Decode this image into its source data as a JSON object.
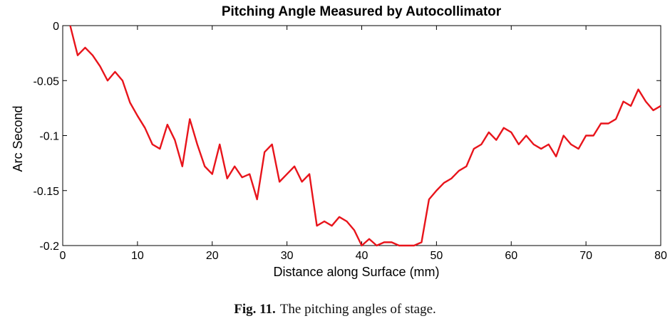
{
  "chart_data": {
    "type": "line",
    "title": "Pitching Angle Measured by Autocollimator",
    "xlabel": "Distance along Surface (mm)",
    "ylabel": "Arc Second",
    "xlim": [
      0,
      80
    ],
    "ylim": [
      -0.2,
      0
    ],
    "xticks": [
      "0",
      "10",
      "20",
      "30",
      "40",
      "50",
      "60",
      "70",
      "80"
    ],
    "yticks": [
      "0",
      "-0.05",
      "-0.1",
      "-0.15",
      "-0.2"
    ],
    "grid": false,
    "line_color": "#e8141b",
    "series": [
      {
        "x": [
          1,
          2,
          3,
          4,
          5,
          6,
          7,
          8,
          9,
          10,
          11,
          12,
          13,
          14,
          15,
          16,
          17,
          18,
          19,
          20,
          21,
          22,
          23,
          24,
          25,
          26,
          27,
          28,
          29,
          30,
          31,
          32,
          33,
          34,
          35,
          36,
          37,
          38,
          39,
          40,
          41,
          42,
          43,
          44,
          45,
          46,
          47,
          48,
          49,
          50,
          51,
          52,
          53,
          54,
          55,
          56,
          57,
          58,
          59,
          60,
          61,
          62,
          63,
          64,
          65,
          66,
          67,
          68,
          69,
          70,
          71,
          72,
          73,
          74,
          75,
          76,
          77,
          78,
          79,
          80
        ],
        "values": [
          0,
          -0.027,
          -0.02,
          -0.027,
          -0.037,
          -0.05,
          -0.042,
          -0.05,
          -0.07,
          -0.082,
          -0.093,
          -0.108,
          -0.112,
          -0.09,
          -0.104,
          -0.128,
          -0.085,
          -0.108,
          -0.128,
          -0.135,
          -0.108,
          -0.139,
          -0.128,
          -0.138,
          -0.135,
          -0.158,
          -0.115,
          -0.108,
          -0.142,
          -0.135,
          -0.128,
          -0.142,
          -0.135,
          -0.182,
          -0.178,
          -0.182,
          -0.174,
          -0.178,
          -0.186,
          -0.2,
          -0.194,
          -0.2,
          -0.197,
          -0.197,
          -0.2,
          -0.2,
          -0.2,
          -0.197,
          -0.158,
          -0.15,
          -0.143,
          -0.139,
          -0.132,
          -0.128,
          -0.112,
          -0.108,
          -0.097,
          -0.104,
          -0.093,
          -0.097,
          -0.108,
          -0.1,
          -0.108,
          -0.112,
          -0.108,
          -0.119,
          -0.1,
          -0.108,
          -0.112,
          -0.1,
          -0.1,
          -0.089,
          -0.089,
          -0.085,
          -0.069,
          -0.073,
          -0.058,
          -0.069,
          -0.077,
          -0.073
        ]
      }
    ]
  },
  "caption": {
    "label": "Fig. 11.",
    "text": "The pitching angles of stage."
  }
}
